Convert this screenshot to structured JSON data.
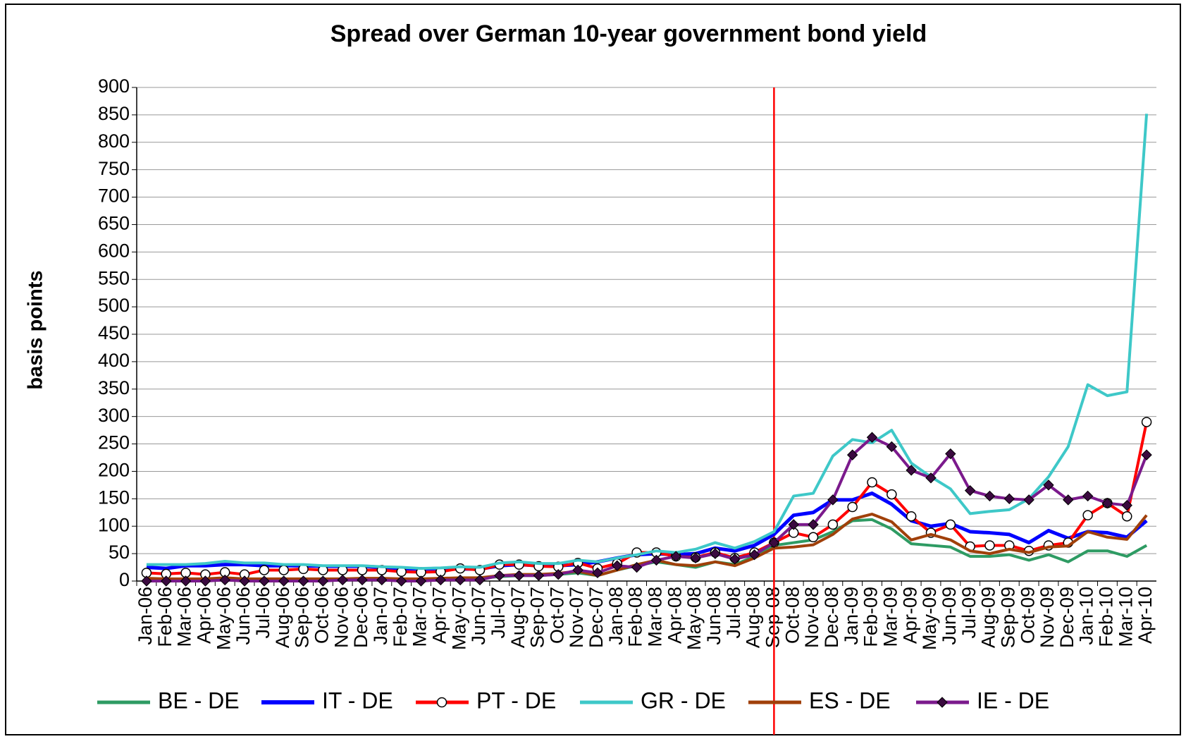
{
  "chart_data": {
    "type": "line",
    "title": "Spread over German 10-year government bond yield",
    "y_label": "basis points",
    "categories": [
      "Jan-06",
      "Feb-06",
      "Mar-06",
      "Apr-06",
      "May-06",
      "Jun-06",
      "Jul-06",
      "Aug-06",
      "Sep-06",
      "Oct-06",
      "Nov-06",
      "Dec-06",
      "Jan-07",
      "Feb-07",
      "Mar-07",
      "Apr-07",
      "May-07",
      "Jun-07",
      "Jul-07",
      "Aug-07",
      "Sep-07",
      "Oct-07",
      "Nov-07",
      "Dec-07",
      "Jan-08",
      "Feb-08",
      "Mar-08",
      "Apr-08",
      "May-08",
      "Jun-08",
      "Jul-08",
      "Aug-08",
      "Sep-08",
      "Oct-08",
      "Nov-08",
      "Dec-08",
      "Jan-09",
      "Feb-09",
      "Mar-09",
      "Apr-09",
      "May-09",
      "Jun-09",
      "Jul-09",
      "Aug-09",
      "Sep-09",
      "Oct-09",
      "Nov-09",
      "Dec-09",
      "Jan-10",
      "Feb-10",
      "Mar-10",
      "Apr-10"
    ],
    "series": [
      {
        "name": "BE - DE",
        "color": "#2e9b63",
        "width": 4,
        "marker": "none",
        "values": [
          3,
          3,
          3,
          3,
          4,
          3,
          3,
          3,
          3,
          3,
          3,
          3,
          3,
          3,
          3,
          3,
          4,
          5,
          8,
          10,
          10,
          12,
          15,
          10,
          20,
          28,
          35,
          30,
          25,
          35,
          30,
          45,
          65,
          70,
          75,
          90,
          110,
          112,
          95,
          68,
          65,
          62,
          45,
          45,
          48,
          38,
          48,
          35,
          55,
          55,
          45,
          65
        ]
      },
      {
        "name": "IT - DE",
        "color": "#0000ff",
        "width": 5,
        "marker": "none",
        "values": [
          25,
          23,
          28,
          28,
          30,
          30,
          28,
          28,
          28,
          27,
          27,
          27,
          25,
          23,
          22,
          23,
          22,
          22,
          28,
          30,
          28,
          28,
          30,
          35,
          42,
          48,
          50,
          48,
          50,
          60,
          55,
          65,
          85,
          120,
          125,
          148,
          148,
          160,
          140,
          110,
          100,
          105,
          90,
          88,
          85,
          70,
          92,
          78,
          90,
          88,
          80,
          110
        ]
      },
      {
        "name": "PT - DE",
        "color": "#ff0000",
        "width": 4,
        "marker": "circle",
        "values": [
          15,
          13,
          15,
          12,
          16,
          12,
          20,
          20,
          22,
          20,
          20,
          20,
          20,
          17,
          16,
          17,
          23,
          20,
          30,
          30,
          27,
          26,
          33,
          23,
          32,
          52,
          52,
          45,
          43,
          52,
          42,
          52,
          70,
          88,
          80,
          103,
          135,
          180,
          158,
          118,
          88,
          103,
          63,
          65,
          65,
          55,
          65,
          70,
          120,
          142,
          118,
          290
        ]
      },
      {
        "name": "GR - DE",
        "color": "#3ec8c8",
        "width": 4,
        "marker": "none",
        "values": [
          30,
          30,
          30,
          32,
          36,
          33,
          33,
          30,
          30,
          28,
          28,
          28,
          26,
          25,
          23,
          24,
          26,
          25,
          33,
          35,
          32,
          32,
          38,
          35,
          42,
          48,
          55,
          52,
          58,
          70,
          60,
          72,
          90,
          155,
          160,
          228,
          258,
          252,
          275,
          215,
          190,
          168,
          123,
          127,
          130,
          150,
          190,
          245,
          358,
          338,
          345,
          852
        ]
      },
      {
        "name": "ES - DE",
        "color": "#a0400a",
        "width": 4,
        "marker": "none",
        "values": [
          5,
          4,
          4,
          4,
          6,
          4,
          4,
          4,
          4,
          4,
          4,
          5,
          5,
          4,
          4,
          5,
          6,
          6,
          10,
          12,
          12,
          14,
          18,
          10,
          20,
          30,
          38,
          30,
          28,
          35,
          28,
          42,
          60,
          62,
          66,
          85,
          113,
          122,
          108,
          75,
          85,
          75,
          55,
          50,
          58,
          52,
          62,
          64,
          90,
          80,
          76,
          120
        ]
      },
      {
        "name": "IE - DE",
        "color": "#7b1a8c",
        "width": 4,
        "marker": "diamond",
        "values": [
          0,
          0,
          0,
          0,
          2,
          0,
          0,
          0,
          0,
          0,
          2,
          2,
          2,
          0,
          0,
          2,
          2,
          2,
          10,
          10,
          10,
          12,
          20,
          15,
          28,
          25,
          38,
          45,
          42,
          50,
          40,
          48,
          70,
          103,
          103,
          148,
          230,
          262,
          245,
          202,
          188,
          232,
          165,
          155,
          150,
          148,
          175,
          148,
          155,
          142,
          138,
          230
        ]
      }
    ],
    "ylim": [
      0,
      900
    ],
    "yticks": [
      0,
      50,
      100,
      150,
      200,
      250,
      300,
      350,
      400,
      450,
      500,
      550,
      600,
      650,
      700,
      750,
      800,
      850,
      900
    ],
    "grid": true,
    "legend": "bottom",
    "vertical_line": {
      "category": 32,
      "color": "#ff0000"
    }
  }
}
